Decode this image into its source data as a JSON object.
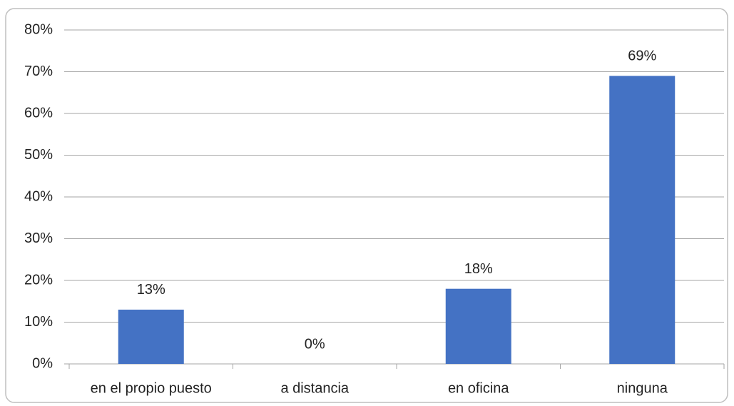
{
  "chart_data": {
    "type": "bar",
    "categories": [
      "en el propio puesto",
      "a distancia",
      "en oficina",
      "ninguna"
    ],
    "values": [
      13,
      0,
      18,
      69
    ],
    "value_labels": [
      "13%",
      "0%",
      "18%",
      "69%"
    ],
    "color": "#4472c4",
    "ylim": [
      0,
      80
    ],
    "yticks": [
      {
        "value": 0,
        "label": "0%"
      },
      {
        "value": 10,
        "label": "10%"
      },
      {
        "value": 20,
        "label": "20%"
      },
      {
        "value": 30,
        "label": "30%"
      },
      {
        "value": 40,
        "label": "40%"
      },
      {
        "value": 50,
        "label": "50%"
      },
      {
        "value": 60,
        "label": "60%"
      },
      {
        "value": 70,
        "label": "70%"
      },
      {
        "value": 80,
        "label": "80%"
      }
    ],
    "grid": true
  }
}
